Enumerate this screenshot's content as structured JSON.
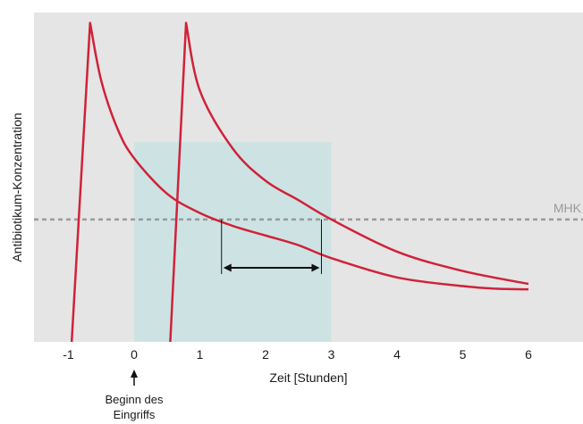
{
  "chart_data": {
    "type": "line",
    "xlabel": "Zeit [Stunden]",
    "ylabel": "Antibiotikum-Konzentration",
    "xlim": [
      -1.5,
      6.8
    ],
    "ylim": [
      0,
      1
    ],
    "x_ticks": [
      {
        "value": -1,
        "label": "-1"
      },
      {
        "value": 0,
        "label": "0"
      },
      {
        "value": 1,
        "label": "1"
      },
      {
        "value": 2,
        "label": "2"
      },
      {
        "value": 3,
        "label": "3"
      },
      {
        "value": 4,
        "label": "4"
      },
      {
        "value": 5,
        "label": "5"
      },
      {
        "value": 6,
        "label": "6"
      }
    ],
    "grid": false,
    "background_color": "#e5e5e5",
    "series": [
      {
        "color": "#d0223a",
        "points": [
          [
            -0.95,
            0.0
          ],
          [
            -0.67,
            0.99
          ],
          [
            -0.5,
            0.81
          ],
          [
            -0.25,
            0.66
          ],
          [
            0.0,
            0.57
          ],
          [
            0.5,
            0.46
          ],
          [
            1.0,
            0.4
          ],
          [
            1.5,
            0.36
          ],
          [
            2.0,
            0.33
          ],
          [
            2.5,
            0.3
          ],
          [
            3.0,
            0.26
          ],
          [
            4.0,
            0.2
          ],
          [
            5.0,
            0.173
          ],
          [
            5.5,
            0.165
          ],
          [
            6.0,
            0.163
          ]
        ]
      },
      {
        "color": "#d0223a",
        "points": [
          [
            0.55,
            0.0
          ],
          [
            0.79,
            0.99
          ],
          [
            1.0,
            0.78
          ],
          [
            1.5,
            0.6
          ],
          [
            2.0,
            0.5
          ],
          [
            2.5,
            0.44
          ],
          [
            3.0,
            0.38
          ],
          [
            4.0,
            0.28
          ],
          [
            5.0,
            0.22
          ],
          [
            6.0,
            0.18
          ]
        ]
      }
    ],
    "reference_line": {
      "label": "MHK",
      "y": 0.38,
      "color": "#9a9a9a"
    },
    "shaded_region": {
      "x": [
        0,
        3
      ],
      "y_top": 0.62,
      "color": "#cde3e3"
    },
    "interval_arrow": {
      "x_start": 1.33,
      "x_end": 2.85,
      "y": 0.23
    },
    "annotation": {
      "x": 0,
      "lines": [
        "Beginn des",
        "Eingriffs"
      ]
    }
  }
}
